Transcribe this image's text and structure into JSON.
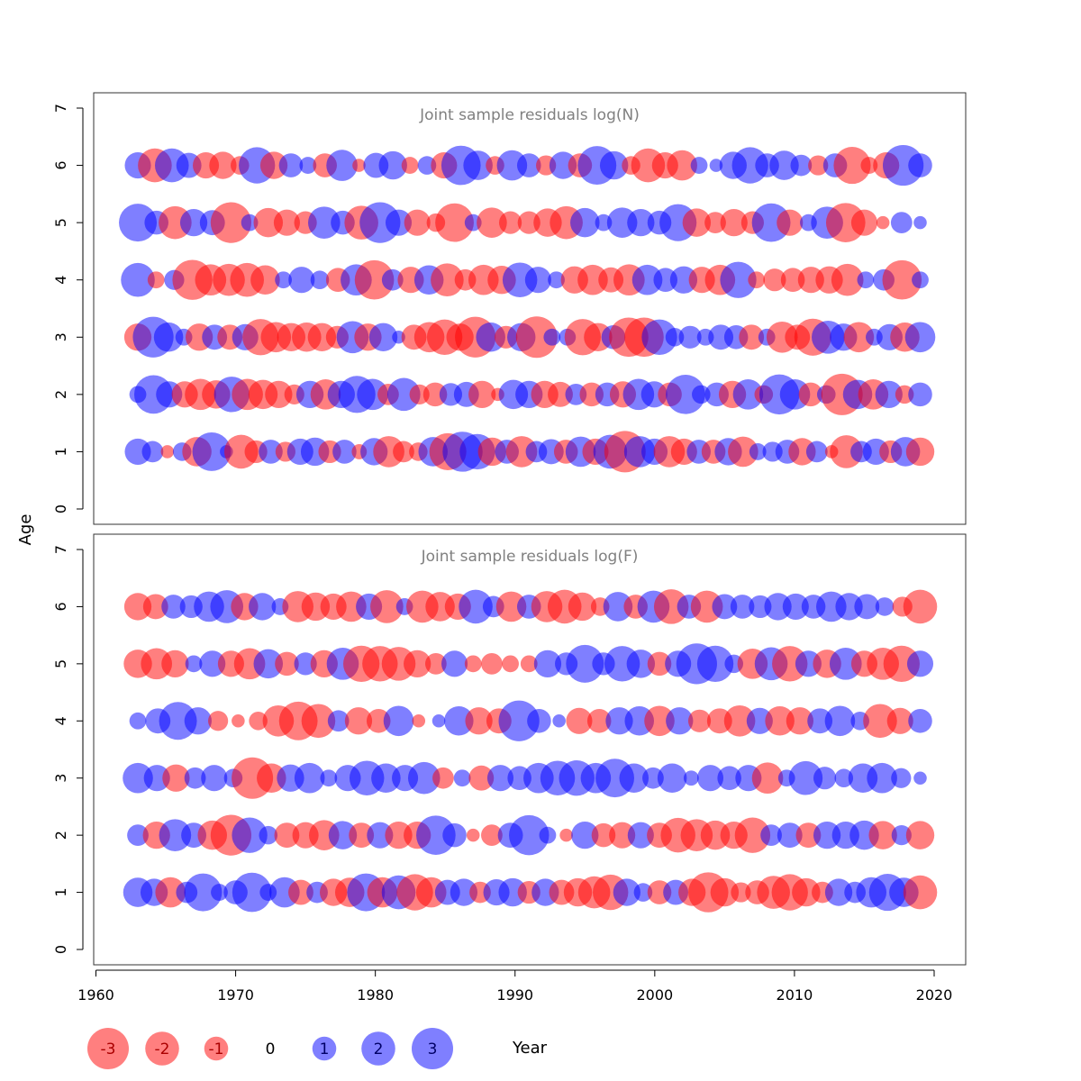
{
  "chart_data": {
    "type": "scatter",
    "subtype": "bubble-residuals",
    "years_start": 1963,
    "years_end": 2019,
    "ages": [
      1,
      2,
      3,
      4,
      5,
      6
    ],
    "xlabel": "Year",
    "ylabel": "Age",
    "xlim": [
      1960,
      2022
    ],
    "ylim": [
      0,
      7
    ],
    "x_ticks": [
      "1960",
      "1970",
      "1980",
      "1990",
      "2000",
      "2010",
      "2020"
    ],
    "y_ticks": [
      "0",
      "1",
      "2",
      "3",
      "4",
      "5",
      "6",
      "7"
    ],
    "grid": false,
    "colors": {
      "positive": "#0000ff",
      "negative": "#ff0000"
    },
    "legend": {
      "placement": "bottom",
      "values": [
        -3,
        -2,
        -1,
        0,
        1,
        2,
        3
      ],
      "labels": [
        "-3",
        "-2",
        "-1",
        "0",
        "1",
        "2",
        "3"
      ]
    },
    "panels": [
      {
        "title": "Joint sample residuals log(N)",
        "residuals": {
          "1": [
            1.2,
            0.8,
            -0.3,
            0.6,
            -1.5,
            2.6,
            0.3,
            -2.0,
            -0.9,
            1.0,
            -0.7,
            1.2,
            1.4,
            -0.9,
            1.0,
            -0.4,
            1.3,
            -1.7,
            -0.8,
            -0.6,
            1.5,
            -2.4,
            2.8,
            2.2,
            -1.4,
            1.0,
            -1.7,
            0.8,
            1.1,
            -1.0,
            1.6,
            -1.2,
            2.0,
            -3.0,
            1.7,
            1.2,
            -1.7,
            -1.2,
            1.0,
            -1.0,
            1.3,
            -1.6,
            0.5,
            0.7,
            1.0,
            -1.3,
            0.8,
            -0.3,
            -1.9,
            0.8,
            1.2,
            -0.9,
            1.5,
            -1.4
          ],
          "2": [
            0.5,
            2.6,
            1.2,
            -1.2,
            -1.7,
            -1.4,
            2.2,
            -1.7,
            -1.5,
            -1.3,
            -0.7,
            1.3,
            -1.6,
            1.3,
            2.4,
            1.7,
            -0.8,
            1.9,
            -0.7,
            -1.0,
            0.9,
            1.1,
            -1.3,
            -0.3,
            1.5,
            1.3,
            -1.3,
            -1.1,
            0.8,
            -1.0,
            1.0,
            -1.2,
            1.7,
            1.2,
            -1.0,
            2.7,
            0.6,
            1.0,
            -1.3,
            1.6,
            -0.6,
            2.8,
            1.6,
            -1.0,
            0.6,
            -3.0,
            1.5,
            -1.6,
            1.3,
            -0.6,
            1.0
          ],
          "3": [
            -1.3,
            2.9,
            1.5,
            0.5,
            -1.3,
            1.1,
            -1.1,
            1.2,
            -2.3,
            -1.6,
            -1.4,
            -1.5,
            -1.4,
            -0.9,
            1.8,
            -1.3,
            1.4,
            0.3,
            -1.1,
            -1.6,
            -2.2,
            -1.3,
            -2.9,
            1.5,
            -0.9,
            1.4,
            -3.0,
            0.5,
            0.5,
            -2.3,
            -1.4,
            1.0,
            -2.7,
            -2.7,
            2.2,
            0.6,
            0.9,
            0.5,
            1.1,
            1.0,
            -1.1,
            0.5,
            -1.7,
            -1.1,
            -2.4,
            1.9,
            1.3,
            -1.6,
            0.5,
            1.2,
            -1.5,
            1.6
          ],
          "4": [
            2.0,
            -0.5,
            0.7,
            -2.8,
            -1.7,
            -1.8,
            -2.0,
            -1.5,
            0.5,
            1.2,
            0.6,
            -1.0,
            1.7,
            -2.7,
            0.8,
            -1.2,
            1.5,
            -1.9,
            -0.8,
            -1.6,
            -1.4,
            2.1,
            1.2,
            0.5,
            -1.3,
            -1.6,
            -1.1,
            -1.7,
            1.6,
            1.0,
            1.3,
            -1.2,
            -1.6,
            2.3,
            -0.5,
            -0.9,
            -1.0,
            -1.2,
            -1.3,
            -1.8,
            0.5,
            0.8,
            -2.7,
            0.5
          ],
          "5": [
            2.5,
            1.0,
            -1.9,
            1.3,
            1.1,
            -2.9,
            0.5,
            -1.5,
            -1.2,
            -0.9,
            1.8,
            1.0,
            -2.0,
            2.9,
            1.2,
            -1.2,
            -0.6,
            -2.6,
            0.5,
            -1.6,
            -0.9,
            -0.9,
            -1.4,
            -1.9,
            1.5,
            0.5,
            1.6,
            1.3,
            1.0,
            2.4,
            -1.4,
            -0.8,
            -1.3,
            -0.9,
            2.6,
            -1.2,
            0.5,
            1.8,
            -2.7,
            -1.2,
            -0.3,
            0.8,
            0.3
          ],
          "6": [
            1.2,
            -2.0,
            2.0,
            1.1,
            -1.2,
            -1.3,
            -0.6,
            2.3,
            -1.3,
            1.0,
            0.5,
            -1.0,
            1.7,
            -0.3,
            1.1,
            1.4,
            -0.5,
            0.6,
            -1.2,
            2.7,
            1.5,
            -0.6,
            1.6,
            1.0,
            -0.7,
            1.3,
            -1.0,
            2.6,
            1.4,
            -0.6,
            -2.0,
            -1.2,
            -1.6,
            0.5,
            0.3,
            1.3,
            2.3,
            1.0,
            1.5,
            0.8,
            -0.7,
            1.0,
            -2.4,
            -0.5,
            -1.2,
            2.9,
            1.0
          ]
        }
      },
      {
        "title": "Joint sample residuals log(F)",
        "residuals": {
          "1": [
            1.5,
            1.3,
            -1.6,
            0.8,
            2.5,
            0.5,
            1.0,
            2.7,
            0.5,
            1.6,
            -1.1,
            0.8,
            -1.3,
            -1.5,
            2.5,
            -1.6,
            2.0,
            -2.3,
            -1.6,
            1.1,
            1.3,
            -0.8,
            1.2,
            1.4,
            -0.9,
            1.3,
            -1.1,
            -1.4,
            -1.8,
            -2.2,
            1.3,
            0.6,
            -1.0,
            1.1,
            -1.3,
            -2.8,
            -1.4,
            -0.7,
            -1.0,
            -1.9,
            -2.3,
            -1.4,
            -0.8,
            1.3,
            0.8,
            1.6,
            2.4,
            1.5,
            -2.0
          ],
          "2": [
            0.8,
            -1.3,
            1.8,
            1.1,
            -1.5,
            -2.9,
            2.2,
            0.6,
            -1.1,
            -1.2,
            -1.6,
            1.4,
            -1.1,
            1.2,
            -1.3,
            -1.3,
            2.7,
            1.0,
            -0.3,
            -0.8,
            1.1,
            2.8,
            0.5,
            -0.3,
            1.3,
            -1.0,
            -1.2,
            1.2,
            -1.1,
            -2.1,
            -1.8,
            -1.5,
            -1.3,
            -2.2,
            0.8,
            1.1,
            -1.1,
            1.3,
            1.3,
            1.5,
            -1.4,
            0.7,
            -1.4
          ],
          "3": [
            1.6,
            1.2,
            -1.3,
            0.8,
            1.2,
            0.6,
            -3.0,
            -1.5,
            1.3,
            1.6,
            0.5,
            1.2,
            2.1,
            1.5,
            1.2,
            1.8,
            -0.8,
            0.5,
            -1.1,
            1.2,
            1.0,
            1.6,
            2.1,
            2.2,
            1.6,
            2.6,
            1.5,
            0.8,
            1.5,
            0.4,
            1.2,
            1.0,
            1.2,
            -1.7,
            0.5,
            2.0,
            0.9,
            0.6,
            1.5,
            1.6,
            0.7,
            0.3
          ],
          "4": [
            0.5,
            1.1,
            2.5,
            1.3,
            -0.7,
            -0.3,
            -0.6,
            -1.7,
            -2.6,
            -2.0,
            0.8,
            -1.3,
            -1.0,
            1.6,
            -0.3,
            0.3,
            1.5,
            -1.3,
            -1.1,
            2.9,
            1.0,
            0.3,
            -1.2,
            -1.0,
            1.3,
            1.5,
            -1.6,
            1.3,
            -0.9,
            -1.1,
            -1.7,
            1.2,
            -1.5,
            -1.3,
            1.1,
            1.6,
            0.6,
            -2.0,
            -1.2,
            1.0
          ],
          "5": [
            -1.4,
            -1.7,
            -1.3,
            0.5,
            1.2,
            -1.2,
            -1.7,
            1.5,
            -1.0,
            0.9,
            -1.3,
            1.8,
            -2.3,
            -2.2,
            -2.0,
            -1.3,
            -0.8,
            1.2,
            -0.5,
            -0.8,
            -0.5,
            -0.5,
            1.3,
            0.9,
            2.5,
            0.9,
            2.2,
            1.4,
            -1.0,
            1.2,
            2.9,
            2.3,
            0.6,
            -1.6,
            1.9,
            -2.2,
            1.2,
            -1.4,
            1.8,
            -1.2,
            -1.8,
            -2.3,
            1.2
          ],
          "6": [
            -1.3,
            -1.1,
            1.0,
            0.9,
            1.6,
            1.9,
            -1.3,
            1.3,
            0.5,
            -1.7,
            -1.4,
            -1.2,
            -1.6,
            1.2,
            -1.9,
            0.5,
            -1.8,
            -1.5,
            -1.2,
            2.0,
            0.8,
            -1.6,
            1.0,
            -1.7,
            -2.0,
            -1.4,
            -0.6,
            1.5,
            -1.0,
            1.8,
            -2.1,
            1.0,
            -1.8,
            1.1,
            1.0,
            0.9,
            1.3,
            1.2,
            1.0,
            1.6,
            1.3,
            1.1,
            0.6,
            -0.7,
            -2.0
          ]
        }
      }
    ]
  }
}
